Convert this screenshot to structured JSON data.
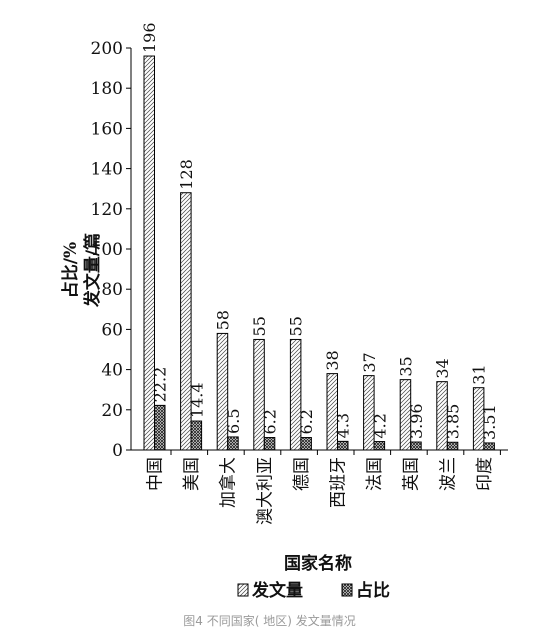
{
  "chart_data": {
    "type": "bar",
    "categories": [
      "中国",
      "美国",
      "加拿大",
      "澳大利亚",
      "德国",
      "西班牙",
      "法国",
      "英国",
      "波兰",
      "印度"
    ],
    "series": [
      {
        "name": "发文量",
        "values": [
          196,
          128,
          58,
          55,
          55,
          38,
          37,
          35,
          34,
          31
        ]
      },
      {
        "name": "占比",
        "values": [
          22.2,
          14.4,
          6.5,
          6.2,
          6.2,
          4.3,
          4.2,
          3.96,
          3.85,
          3.51
        ]
      }
    ],
    "value_labels": [
      [
        "196",
        "128",
        "58",
        "55",
        "55",
        "38",
        "37",
        "35",
        "34",
        "31"
      ],
      [
        "22.2",
        "14.4",
        "6.5",
        "6.2",
        "6.2",
        "4.3",
        "4.2",
        "3.96",
        "3.85",
        "3.51"
      ]
    ],
    "ylabel_lines": [
      "占比/%",
      "发文量/篇"
    ],
    "xlabel": "国家名称",
    "ylim": [
      0,
      200
    ],
    "yticks": [
      0,
      20,
      40,
      60,
      80,
      100,
      120,
      140,
      160,
      180,
      200
    ],
    "grid": false,
    "legend_position": "bottom"
  },
  "caption": "图4 不同国家( 地区) 发文量情况"
}
